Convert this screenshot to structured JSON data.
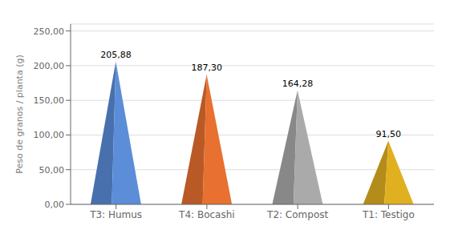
{
  "chart_data": {
    "type": "bar",
    "categories": [
      "T3: Humus",
      "T4: Bocashi",
      "T2: Compost",
      "T1: Testigo"
    ],
    "values": [
      205.88,
      187.3,
      164.28,
      91.5
    ],
    "value_labels": [
      "205,88",
      "187,30",
      "164,28",
      "91,50"
    ],
    "data_labels": true,
    "colors": [
      "#5B8DD9",
      "#E87030",
      "#AAAAAA",
      "#E0B020"
    ],
    "ylabel": "Peso de granos / planta (g)",
    "ylim": [
      0,
      260
    ],
    "yticks": [
      {
        "value": 0,
        "label": "0,00"
      },
      {
        "value": 50,
        "label": "50,00"
      },
      {
        "value": 100,
        "label": "100,00"
      },
      {
        "value": 150,
        "label": "150,00"
      },
      {
        "value": 200,
        "label": "200,00"
      },
      {
        "value": 250,
        "label": "250,00"
      }
    ],
    "grid": true
  }
}
